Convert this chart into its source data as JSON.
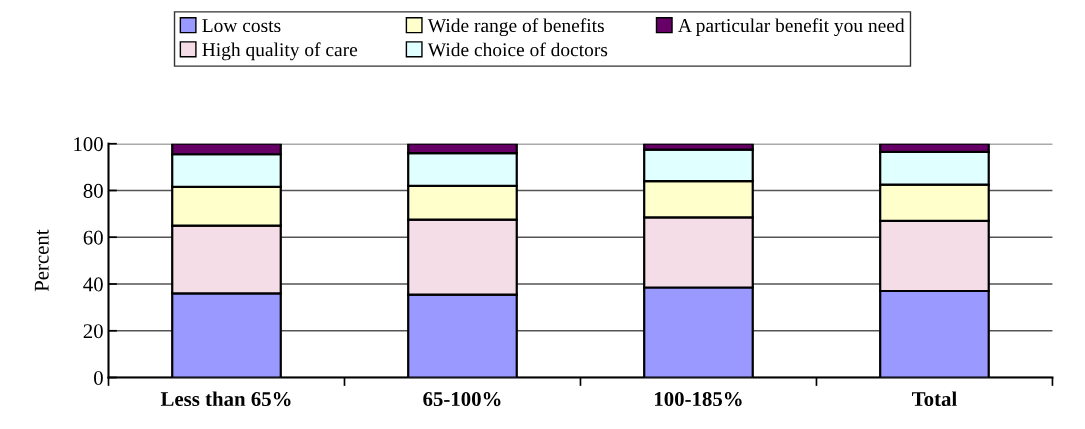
{
  "chart_data": {
    "type": "bar",
    "stacked": true,
    "ylabel": "Percent",
    "categories": [
      "Less than 65%",
      "65-100%",
      "100-185%",
      "Total"
    ],
    "series": [
      {
        "name": "Low costs",
        "color": "#9999ff",
        "values": [
          36,
          35.5,
          38.5,
          37
        ]
      },
      {
        "name": "High quality of care",
        "color": "#f4dde6",
        "values": [
          29,
          32,
          30,
          30
        ]
      },
      {
        "name": "Wide range of benefits",
        "color": "#ffffcc",
        "values": [
          16.5,
          14.5,
          15.5,
          15.5
        ]
      },
      {
        "name": "Wide choice of doctors",
        "color": "#e0ffff",
        "values": [
          14,
          14,
          13.5,
          14
        ]
      },
      {
        "name": "A particular benefit you need",
        "color": "#660066",
        "values": [
          4.5,
          4,
          2.5,
          3.5
        ]
      }
    ],
    "ylim": [
      0,
      100
    ],
    "yticks": [
      0,
      20,
      40,
      60,
      80,
      100
    ],
    "grid": "y",
    "legend": "top"
  }
}
